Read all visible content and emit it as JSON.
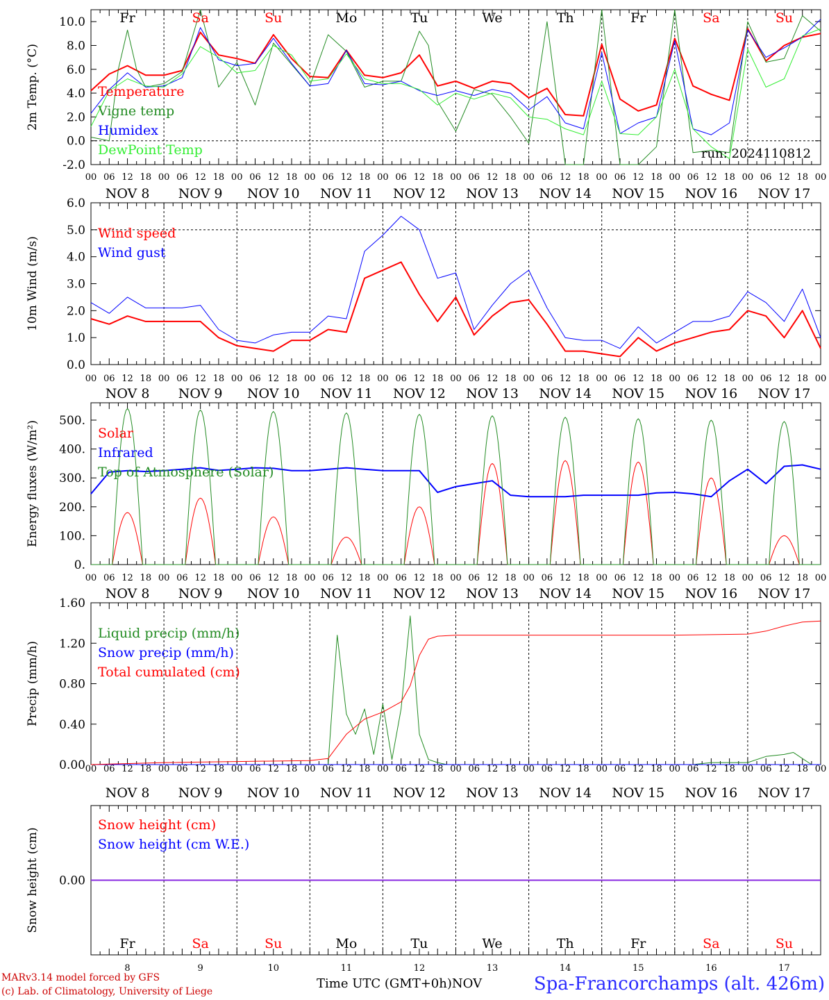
{
  "chart_data": [
    {
      "type": "line",
      "ylabel": "2m Temp. (°C)",
      "ylim": [
        -2,
        11
      ],
      "yticks": [
        -2.0,
        0.0,
        2.0,
        4.0,
        6.0,
        8.0,
        10.0
      ],
      "hline": 0,
      "run_label": "run: 2024110812",
      "series": [
        {
          "name": "Temperature",
          "color": "#ff0000",
          "width": 2,
          "x": [
            0,
            6,
            12,
            18,
            24,
            30,
            36,
            42,
            48,
            54,
            60,
            66,
            72,
            78,
            84,
            90,
            96,
            102,
            108,
            114,
            120,
            126,
            132,
            138,
            144,
            150,
            156,
            162,
            168,
            174,
            180,
            186,
            192,
            198,
            204,
            210,
            216,
            222,
            228,
            234,
            240
          ],
          "y": [
            4.2,
            5.6,
            6.3,
            5.5,
            5.5,
            5.9,
            9.1,
            7.2,
            6.9,
            6.5,
            8.9,
            6.9,
            5.4,
            5.3,
            7.6,
            5.5,
            5.3,
            5.7,
            7.2,
            4.6,
            5.0,
            4.4,
            5.0,
            4.8,
            3.6,
            4.4,
            2.2,
            2.1,
            8.1,
            3.5,
            2.5,
            3.0,
            8.6,
            4.6,
            3.9,
            3.4,
            9.4,
            6.7,
            8.0,
            8.7,
            9.0
          ]
        },
        {
          "name": "Vigne temp",
          "color": "#228b22",
          "width": 1,
          "x": [
            0,
            6,
            9,
            12,
            15,
            18,
            24,
            30,
            36,
            39,
            42,
            48,
            54,
            60,
            66,
            72,
            78,
            84,
            90,
            96,
            102,
            108,
            111,
            114,
            120,
            126,
            132,
            138,
            144,
            150,
            156,
            162,
            168,
            174,
            180,
            186,
            192,
            198,
            204,
            210,
            216,
            222,
            228,
            234,
            240
          ],
          "y": [
            0.3,
            0.0,
            6.0,
            9.3,
            6.0,
            4.5,
            4.8,
            5.8,
            11.0,
            8.0,
            4.5,
            6.6,
            3.0,
            8.2,
            6.4,
            4.6,
            8.9,
            7.5,
            4.5,
            5.0,
            5.0,
            9.2,
            8.0,
            3.3,
            0.8,
            4.3,
            3.9,
            2.0,
            -0.2,
            10.0,
            -2.0,
            -2.0,
            11.0,
            -2.0,
            -2.0,
            -0.5,
            11.0,
            -1.0,
            -0.8,
            -1.0,
            10.0,
            6.6,
            6.9,
            10.5,
            9.2
          ]
        },
        {
          "name": "Humidex",
          "color": "#0000ff",
          "width": 1,
          "x": [
            0,
            6,
            12,
            18,
            24,
            30,
            36,
            42,
            48,
            54,
            60,
            66,
            72,
            78,
            84,
            90,
            96,
            102,
            108,
            114,
            120,
            126,
            132,
            138,
            144,
            150,
            156,
            162,
            168,
            174,
            180,
            186,
            192,
            198,
            204,
            210,
            216,
            222,
            228,
            234,
            240
          ],
          "y": [
            2.3,
            4.3,
            5.7,
            4.5,
            4.6,
            5.3,
            9.5,
            6.8,
            6.3,
            6.5,
            8.6,
            6.5,
            4.6,
            4.8,
            7.6,
            4.8,
            4.7,
            5.0,
            4.2,
            3.8,
            4.2,
            3.8,
            4.3,
            4.0,
            2.6,
            3.7,
            1.5,
            1.0,
            7.4,
            0.6,
            1.5,
            2.0,
            8.4,
            1.0,
            0.5,
            1.5,
            9.3,
            7.0,
            7.8,
            8.7,
            10.2
          ]
        },
        {
          "name": "DewPoint Temp",
          "color": "#33ee33",
          "width": 1,
          "x": [
            0,
            6,
            12,
            18,
            24,
            30,
            36,
            42,
            48,
            54,
            60,
            66,
            72,
            78,
            84,
            90,
            96,
            102,
            108,
            114,
            120,
            126,
            132,
            138,
            144,
            150,
            156,
            162,
            168,
            174,
            180,
            186,
            192,
            198,
            204,
            210,
            216,
            222,
            228,
            234,
            240
          ],
          "y": [
            1.2,
            4.2,
            5.2,
            4.6,
            4.5,
            5.6,
            7.9,
            7.0,
            5.7,
            5.9,
            8.0,
            7.2,
            5.0,
            5.2,
            7.3,
            5.2,
            4.8,
            4.8,
            4.3,
            3.0,
            4.0,
            3.5,
            4.0,
            3.6,
            2.0,
            1.8,
            1.0,
            0.5,
            5.0,
            0.6,
            0.5,
            2.0,
            6.0,
            1.0,
            -0.5,
            -1.5,
            7.7,
            4.5,
            5.2,
            8.8,
            9.4
          ]
        }
      ]
    },
    {
      "type": "line",
      "ylabel": "10m Wind (m/s)",
      "ylim": [
        0,
        6
      ],
      "yticks": [
        0.0,
        1.0,
        2.0,
        3.0,
        4.0,
        5.0,
        6.0
      ],
      "hline": 5,
      "series": [
        {
          "name": "Wind speed",
          "color": "#ff0000",
          "width": 2,
          "x": [
            0,
            6,
            12,
            18,
            24,
            30,
            36,
            42,
            48,
            54,
            60,
            66,
            72,
            78,
            84,
            90,
            96,
            102,
            108,
            114,
            120,
            126,
            132,
            138,
            144,
            150,
            156,
            162,
            168,
            174,
            180,
            186,
            192,
            198,
            204,
            210,
            216,
            222,
            228,
            234,
            240
          ],
          "y": [
            1.7,
            1.5,
            1.8,
            1.6,
            1.6,
            1.6,
            1.6,
            1.0,
            0.7,
            0.6,
            0.5,
            0.9,
            0.9,
            1.3,
            1.2,
            3.2,
            3.5,
            3.8,
            2.6,
            1.6,
            2.5,
            1.1,
            1.8,
            2.3,
            2.4,
            1.5,
            0.5,
            0.5,
            0.4,
            0.3,
            1.0,
            0.5,
            0.8,
            1.0,
            1.2,
            1.3,
            2.0,
            1.8,
            1.0,
            2.0,
            0.6
          ]
        },
        {
          "name": "Wind gust",
          "color": "#0000ff",
          "width": 1,
          "x": [
            0,
            6,
            12,
            18,
            24,
            30,
            36,
            42,
            48,
            54,
            60,
            66,
            72,
            78,
            84,
            90,
            96,
            102,
            108,
            114,
            120,
            126,
            132,
            138,
            144,
            150,
            156,
            162,
            168,
            174,
            180,
            186,
            192,
            198,
            204,
            210,
            216,
            222,
            228,
            234,
            240
          ],
          "y": [
            2.3,
            1.9,
            2.5,
            2.1,
            2.1,
            2.1,
            2.2,
            1.3,
            0.9,
            0.8,
            1.1,
            1.2,
            1.2,
            1.8,
            1.7,
            4.2,
            4.8,
            5.5,
            5.0,
            3.2,
            3.4,
            1.3,
            2.2,
            3.0,
            3.5,
            2.1,
            1.0,
            0.9,
            0.9,
            0.6,
            1.4,
            0.8,
            1.2,
            1.6,
            1.6,
            1.8,
            2.7,
            2.3,
            1.6,
            2.8,
            1.0
          ]
        }
      ]
    },
    {
      "type": "line",
      "ylabel": "Energy fluxes (W/m²)",
      "ylim": [
        0,
        560
      ],
      "yticks": [
        0,
        100,
        200,
        300,
        400,
        500
      ],
      "ytick_labels": [
        "0.",
        "100.",
        "200.",
        "300.",
        "400.",
        "500."
      ],
      "series": [
        {
          "name": "Solar",
          "color": "#ff0000",
          "width": 1,
          "day_peaks": [
            180,
            230,
            165,
            95,
            200,
            350,
            360,
            355,
            300,
            100
          ]
        },
        {
          "name": "Infrared",
          "color": "#0000ff",
          "width": 2,
          "x": [
            0,
            6,
            12,
            18,
            24,
            30,
            36,
            42,
            48,
            54,
            60,
            66,
            72,
            78,
            84,
            90,
            96,
            102,
            108,
            114,
            120,
            126,
            132,
            138,
            144,
            150,
            156,
            162,
            168,
            174,
            180,
            186,
            192,
            198,
            204,
            210,
            216,
            222,
            228,
            234,
            240
          ],
          "y": [
            245,
            320,
            325,
            322,
            325,
            330,
            335,
            326,
            330,
            335,
            333,
            325,
            325,
            330,
            335,
            330,
            325,
            325,
            325,
            250,
            270,
            280,
            290,
            240,
            235,
            235,
            235,
            240,
            240,
            240,
            240,
            248,
            250,
            245,
            235,
            290,
            330,
            280,
            340,
            345,
            330
          ]
        },
        {
          "name": "Top of Atmosphere (Solar)",
          "color": "#228b22",
          "width": 1,
          "day_peaks": [
            540,
            535,
            530,
            525,
            520,
            515,
            510,
            505,
            500,
            495
          ]
        }
      ]
    },
    {
      "type": "line",
      "ylabel": "Precip (mm/h)",
      "ylim": [
        0,
        1.6
      ],
      "yticks": [
        0.0,
        0.4,
        0.8,
        1.2,
        1.6
      ],
      "ytick_labels": [
        "0.00",
        "0.40",
        "0.80",
        "1.20",
        "1.60"
      ],
      "series": [
        {
          "name": "Liquid precip (mm/h)",
          "color": "#228b22",
          "width": 1,
          "x": [
            0,
            78,
            81,
            84,
            87,
            90,
            93,
            96,
            99,
            102,
            105,
            108,
            111,
            114,
            117,
            120,
            198,
            204,
            210,
            216,
            222,
            228,
            231,
            234,
            237,
            240
          ],
          "y": [
            0,
            0,
            1.28,
            0.5,
            0.3,
            0.55,
            0.1,
            0.6,
            0.05,
            0.55,
            1.47,
            0.3,
            0.05,
            0.02,
            0,
            0,
            0,
            0.02,
            0.02,
            0.02,
            0.08,
            0.1,
            0.12,
            0.06,
            0,
            0
          ]
        },
        {
          "name": "Snow precip (mm/h)",
          "color": "#0000ff",
          "width": 1,
          "x": [
            0,
            240
          ],
          "y": [
            0,
            0
          ]
        },
        {
          "name": "Total cumulated (cm)",
          "color": "#ff0000",
          "width": 1,
          "x": [
            0,
            24,
            48,
            72,
            78,
            84,
            90,
            96,
            102,
            105,
            108,
            111,
            114,
            120,
            144,
            168,
            192,
            216,
            222,
            228,
            234,
            240
          ],
          "y": [
            0,
            0.02,
            0.03,
            0.04,
            0.06,
            0.3,
            0.45,
            0.52,
            0.62,
            0.78,
            1.08,
            1.24,
            1.27,
            1.28,
            1.28,
            1.28,
            1.28,
            1.29,
            1.32,
            1.37,
            1.41,
            1.42
          ]
        }
      ]
    },
    {
      "type": "line",
      "ylabel": "Snow height (cm)",
      "yticks": [
        0.0
      ],
      "ytick_labels": [
        "0.00"
      ],
      "series": [
        {
          "name": "Snow height (cm)",
          "color": "#ff0000",
          "width": 1,
          "x": [
            0,
            240
          ],
          "y": [
            0,
            0
          ]
        },
        {
          "name": "Snow height (cm W.E.)",
          "color": "#0000ff",
          "width": 1,
          "x": [
            0,
            240
          ],
          "y": [
            0,
            0
          ]
        }
      ]
    }
  ],
  "hour_labels": [
    "00",
    "06",
    "12",
    "18"
  ],
  "hour_label_end": "00",
  "date_labels": [
    "NOV  8",
    "NOV  9",
    "NOV 10",
    "NOV 11",
    "NOV 12",
    "NOV 13",
    "NOV 14",
    "NOV 15",
    "NOV 16",
    "NOV 17"
  ],
  "day_names": [
    {
      "label": "Fr",
      "color": "#000000"
    },
    {
      "label": "Sa",
      "color": "#ff0000"
    },
    {
      "label": "Su",
      "color": "#ff0000"
    },
    {
      "label": "Mo",
      "color": "#000000"
    },
    {
      "label": "Tu",
      "color": "#000000"
    },
    {
      "label": "We",
      "color": "#000000"
    },
    {
      "label": "Th",
      "color": "#000000"
    },
    {
      "label": "Fr",
      "color": "#000000"
    },
    {
      "label": "Sa",
      "color": "#ff0000"
    },
    {
      "label": "Su",
      "color": "#ff0000"
    }
  ],
  "day_numbers": [
    "8",
    "9",
    "10",
    "11",
    "12",
    "13",
    "14",
    "15",
    "16",
    "17"
  ],
  "footer": {
    "model_line": "MARv3.14 model forced by GFS",
    "lab_line": "(c) Lab. of Climatology, University of Liege",
    "time_label": "Time UTC (GMT+0h)",
    "month_label": "NOV",
    "station": "Spa-Francorchamps (alt. 426m)"
  }
}
